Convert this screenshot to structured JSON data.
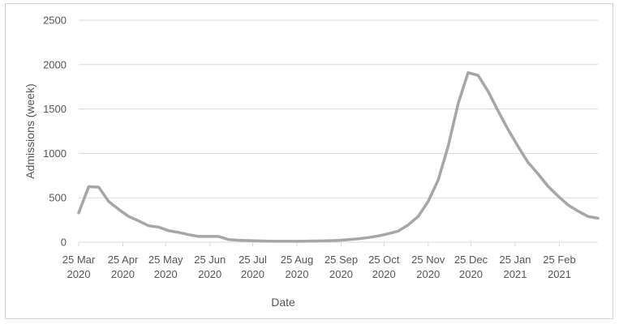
{
  "chart_data": {
    "type": "line",
    "title": "",
    "xlabel": "Date",
    "ylabel": "Admissions (week)",
    "ylim": [
      0,
      2500
    ],
    "yticks": [
      0,
      500,
      1000,
      1500,
      2000,
      2500
    ],
    "grid": true,
    "legend": "none",
    "line_color": "#a6a6a6",
    "grid_color": "#d9d9d9",
    "x_tick_labels": [
      {
        "date": "2020-03-25",
        "line1": "25 Mar",
        "line2": "2020"
      },
      {
        "date": "2020-04-25",
        "line1": "25 Apr",
        "line2": "2020"
      },
      {
        "date": "2020-05-25",
        "line1": "25 May",
        "line2": "2020"
      },
      {
        "date": "2020-06-25",
        "line1": "25 Jun",
        "line2": "2020"
      },
      {
        "date": "2020-07-25",
        "line1": "25 Jul",
        "line2": "2020"
      },
      {
        "date": "2020-08-25",
        "line1": "25 Aug",
        "line2": "2020"
      },
      {
        "date": "2020-09-25",
        "line1": "25 Sep",
        "line2": "2020"
      },
      {
        "date": "2020-10-25",
        "line1": "25 Oct",
        "line2": "2020"
      },
      {
        "date": "2020-11-25",
        "line1": "25 Nov",
        "line2": "2020"
      },
      {
        "date": "2020-12-25",
        "line1": "25 Dec",
        "line2": "2020"
      },
      {
        "date": "2021-01-25",
        "line1": "25 Jan",
        "line2": "2021"
      },
      {
        "date": "2021-02-25",
        "line1": "25 Feb",
        "line2": "2021"
      }
    ],
    "series": [
      {
        "x": [
          "2020-03-25",
          "2020-04-01",
          "2020-04-08",
          "2020-04-15",
          "2020-04-22",
          "2020-04-29",
          "2020-05-06",
          "2020-05-13",
          "2020-05-20",
          "2020-05-27",
          "2020-06-03",
          "2020-06-10",
          "2020-06-17",
          "2020-06-24",
          "2020-07-01",
          "2020-07-08",
          "2020-07-15",
          "2020-07-22",
          "2020-07-29",
          "2020-08-05",
          "2020-08-12",
          "2020-08-19",
          "2020-08-26",
          "2020-09-02",
          "2020-09-09",
          "2020-09-16",
          "2020-09-23",
          "2020-09-30",
          "2020-10-07",
          "2020-10-14",
          "2020-10-21",
          "2020-10-28",
          "2020-11-04",
          "2020-11-11",
          "2020-11-18",
          "2020-11-25",
          "2020-12-02",
          "2020-12-09",
          "2020-12-16",
          "2020-12-23",
          "2020-12-30",
          "2021-01-06",
          "2021-01-13",
          "2021-01-20",
          "2021-01-27",
          "2021-02-03",
          "2021-02-10",
          "2021-02-17",
          "2021-02-24",
          "2021-03-03",
          "2021-03-10",
          "2021-03-17",
          "2021-03-24"
        ],
        "values": [
          330,
          625,
          620,
          460,
          370,
          290,
          240,
          185,
          170,
          130,
          110,
          85,
          65,
          65,
          65,
          30,
          22,
          18,
          15,
          12,
          10,
          10,
          10,
          12,
          14,
          16,
          20,
          28,
          38,
          52,
          70,
          95,
          125,
          195,
          290,
          460,
          700,
          1080,
          1560,
          1910,
          1880,
          1700,
          1480,
          1270,
          1080,
          900,
          770,
          630,
          520,
          420,
          350,
          290,
          270
        ]
      }
    ]
  }
}
